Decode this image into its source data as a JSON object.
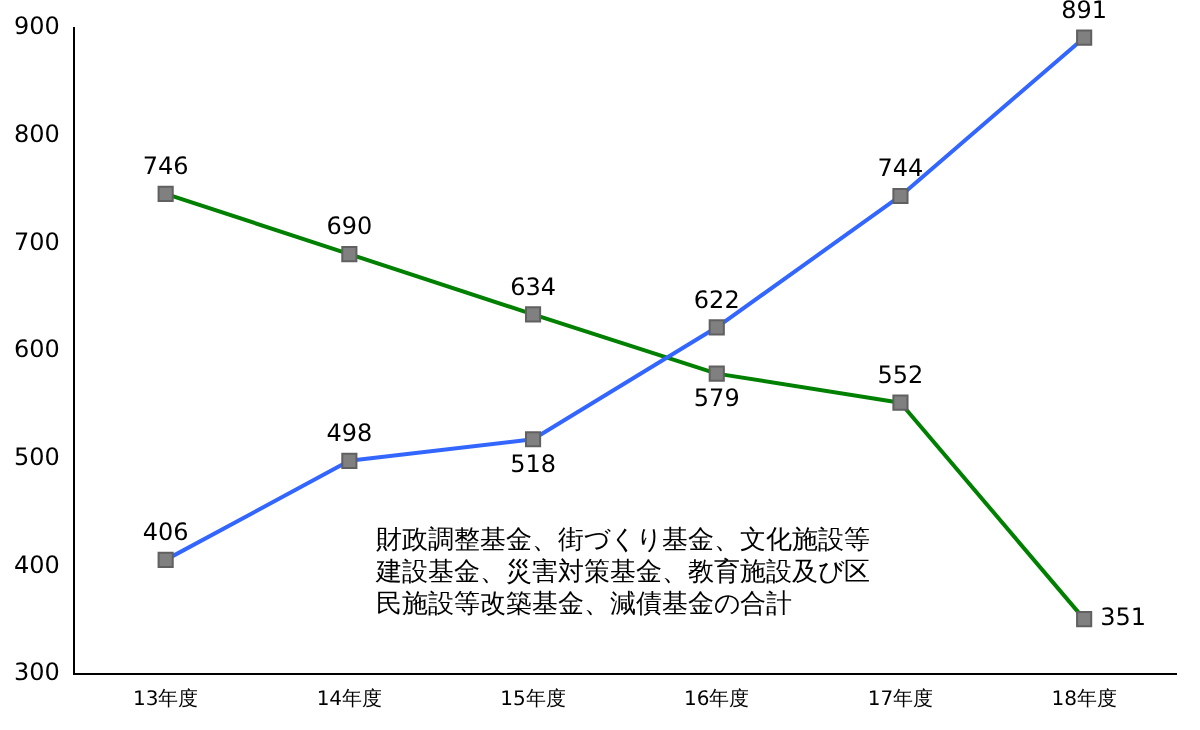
{
  "chart_data": {
    "type": "line",
    "categories": [
      "13年度",
      "14年度",
      "15年度",
      "16年度",
      "17年度",
      "18年度"
    ],
    "series": [
      {
        "color": "#3366ff",
        "values": [
          406,
          498,
          518,
          622,
          744,
          891
        ]
      },
      {
        "color": "#008000",
        "values": [
          746,
          690,
          634,
          579,
          552,
          351
        ]
      }
    ],
    "ylim": [
      300,
      900
    ],
    "yticks": [
      300,
      400,
      500,
      600,
      700,
      800,
      900
    ],
    "grid": false,
    "legend": false,
    "marker": "square",
    "line_style": "solid",
    "data_labels": true,
    "annotations": [
      "財政調整基金、街づくり基金、文化施設等建設基金、災害対策基金、教育施設及び区民施設等改築基金、減債基金の合計"
    ]
  }
}
